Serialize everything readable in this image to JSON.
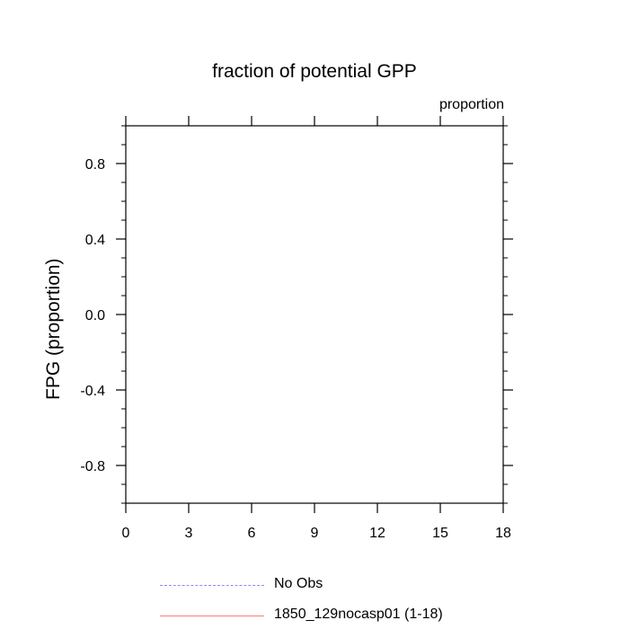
{
  "chart_data": {
    "type": "line",
    "title": "fraction of potential GPP",
    "units_label": "proportion",
    "ylabel": "FPG  (proportion)",
    "xlabel": "",
    "xlim": [
      0,
      18
    ],
    "ylim": [
      -1,
      1
    ],
    "x_ticks": [
      0,
      3,
      6,
      9,
      12,
      15,
      18
    ],
    "x_tick_labels": [
      "0",
      "3",
      "6",
      "9",
      "12",
      "15",
      "18"
    ],
    "y_ticks": [
      0.8,
      0.4,
      0.0,
      -0.4,
      -0.8
    ],
    "y_tick_labels": [
      "0.8",
      "0.4",
      "0.0",
      "-0.4",
      "-0.8"
    ],
    "y_minor_step": 0.1,
    "grid": false,
    "legend_placement": "bottom",
    "series": [
      {
        "name": "No Obs",
        "color": "#8a8aff",
        "style": "dashed",
        "values": []
      },
      {
        "name": "1850_129nocasp01 (1-18)",
        "color": "#ff7a7a",
        "style": "solid",
        "values": []
      }
    ]
  }
}
